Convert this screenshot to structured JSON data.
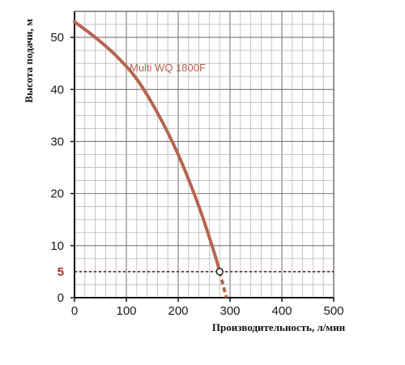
{
  "chart_data": {
    "type": "line",
    "xlabel": "Производительность, л/мин",
    "ylabel": "Высота подачи, м",
    "xlim": [
      0,
      500
    ],
    "ylim": [
      0,
      55
    ],
    "x_ticks": [
      "0",
      "100",
      "200",
      "300",
      "400",
      "500"
    ],
    "y_ticks": [
      "0",
      "10",
      "20",
      "30",
      "40",
      "50"
    ],
    "x_minor_step": 20,
    "y_minor_step": 2.5,
    "grid": true,
    "series": [
      {
        "name": "Multi WQ 1800F",
        "color": "#b5654f",
        "x": [
          0,
          40,
          80,
          120,
          160,
          200,
          240,
          270,
          280
        ],
        "y": [
          53,
          50,
          46.5,
          42,
          35.5,
          27.5,
          17.5,
          8.5,
          5
        ],
        "extension": {
          "x": [
            280,
            293
          ],
          "y": [
            5,
            0
          ],
          "style": "dashed"
        }
      }
    ],
    "reference_line": {
      "y": 5,
      "label": "5",
      "color": "#b03030",
      "style": "dotted"
    },
    "marker": {
      "x": 280,
      "y": 5,
      "shape": "open-circle"
    }
  }
}
